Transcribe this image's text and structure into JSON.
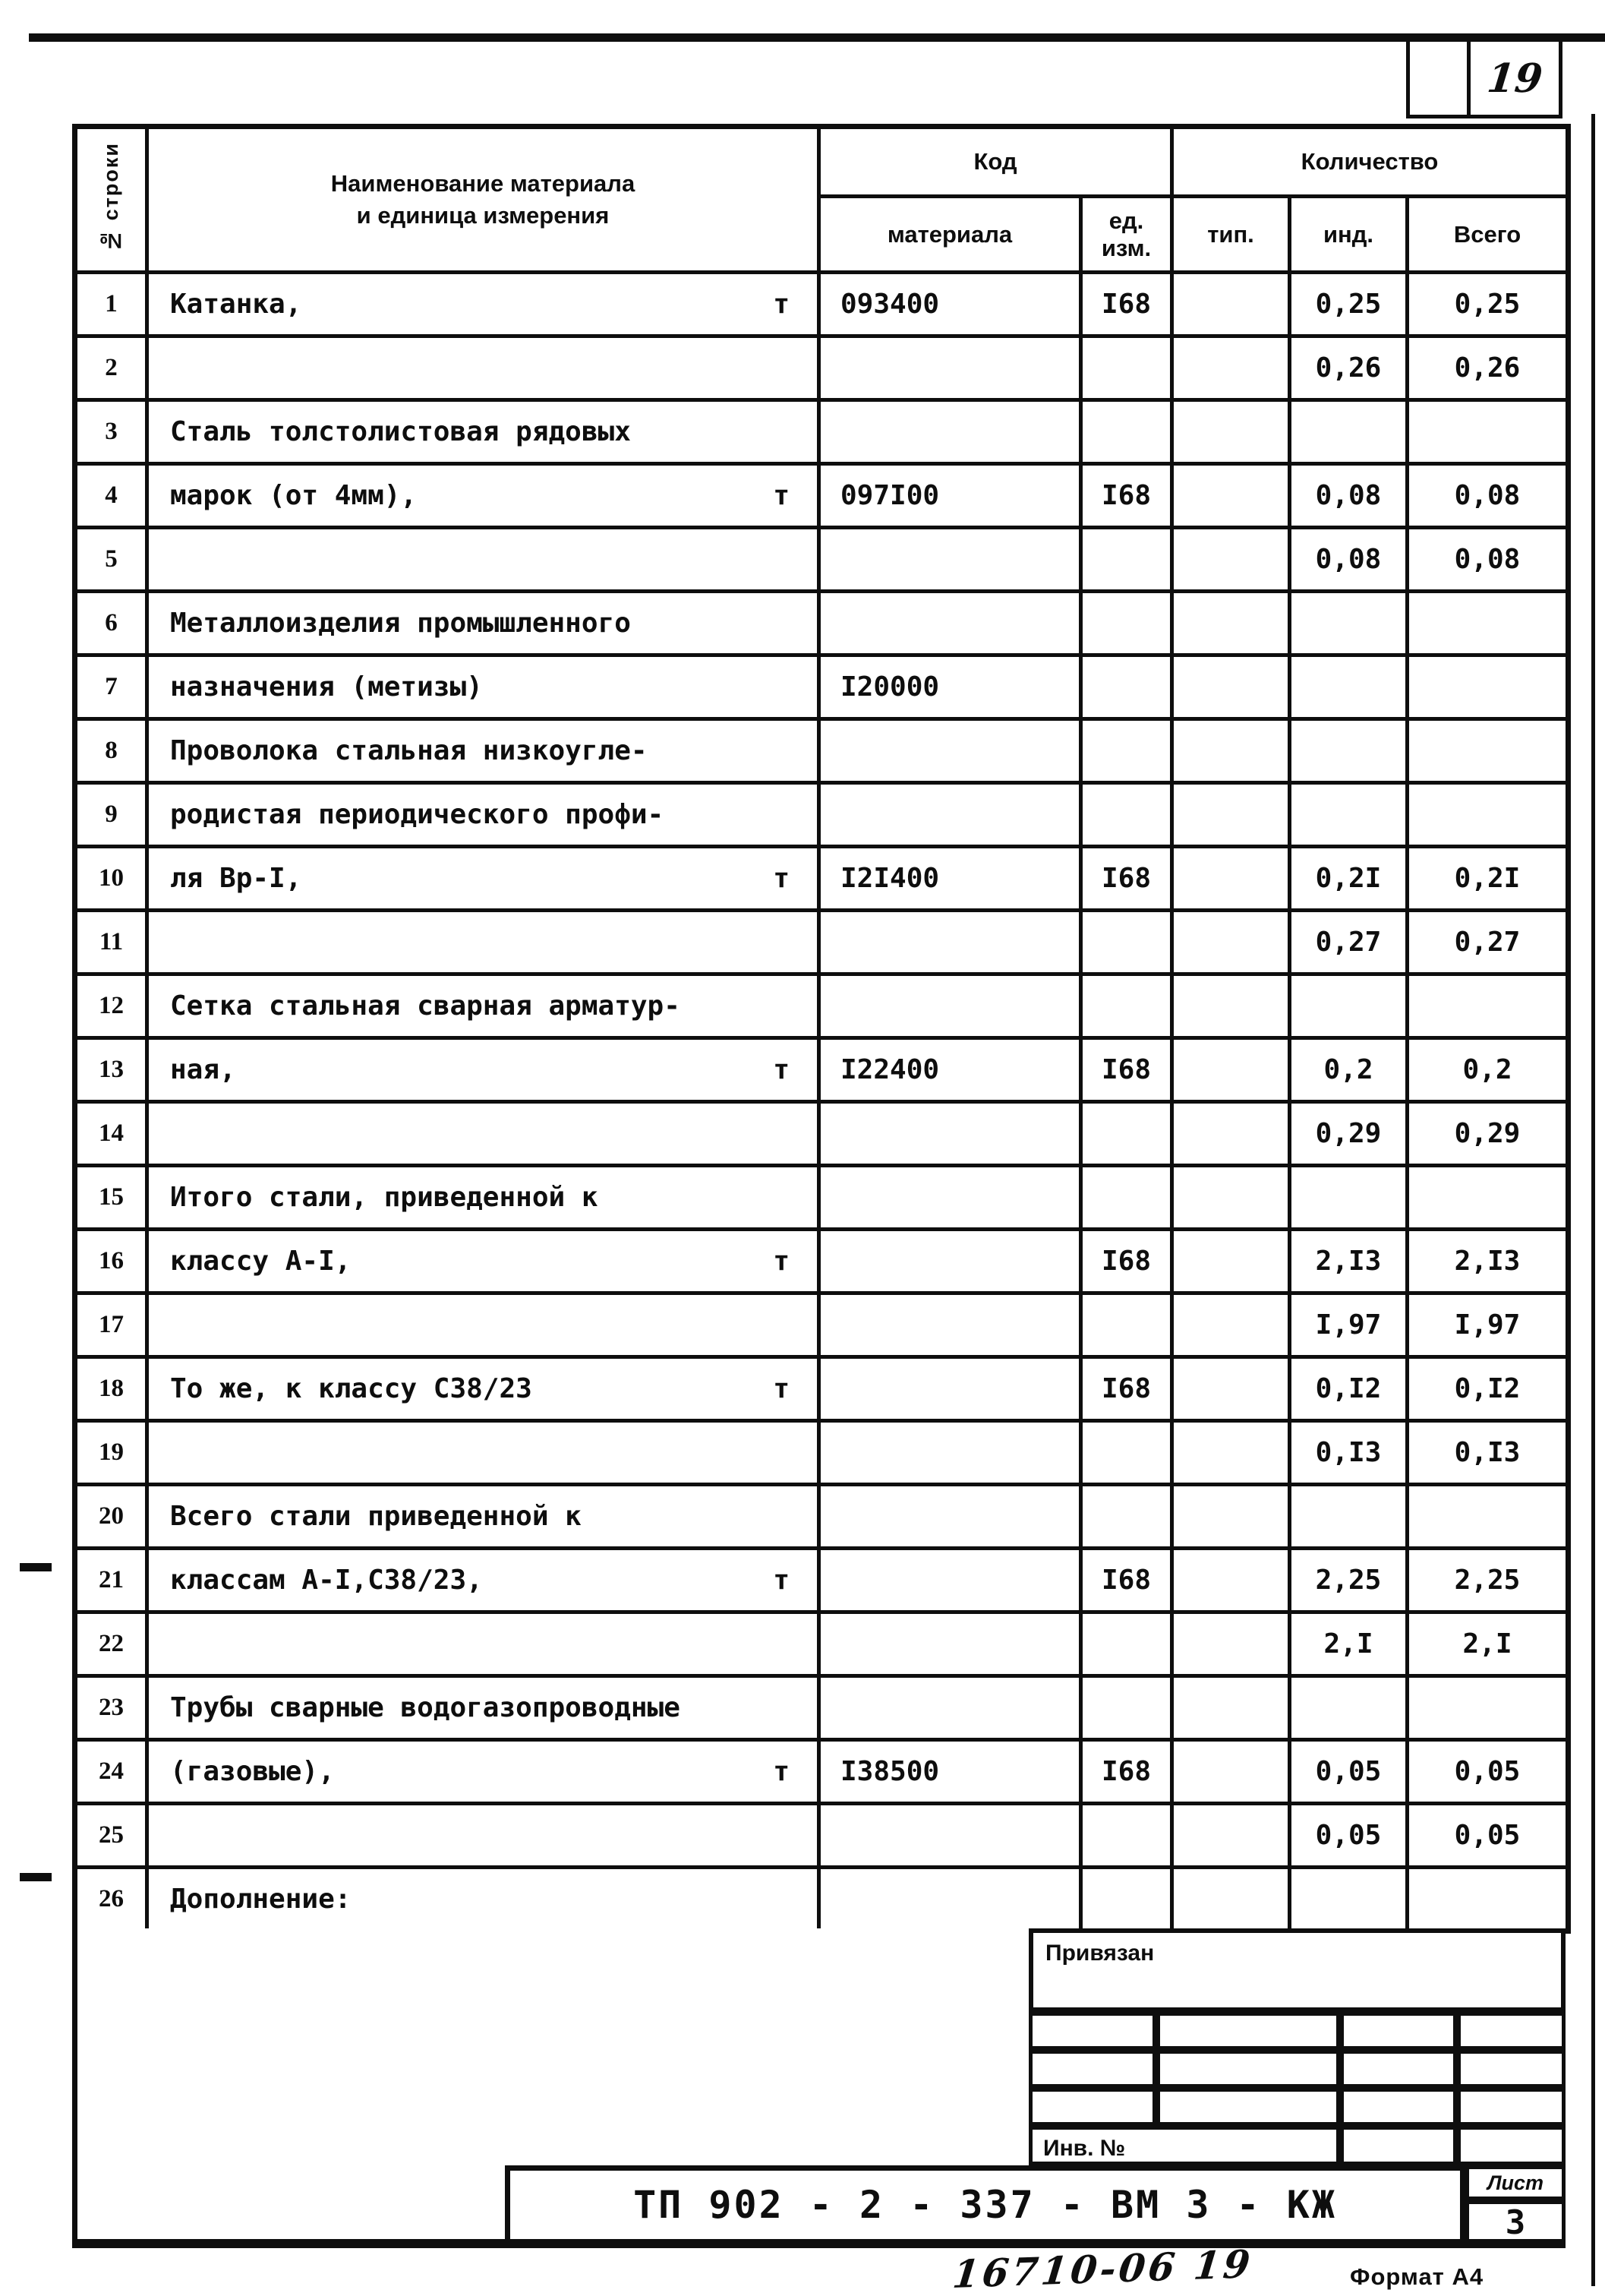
{
  "header_meta": {
    "page_number": "19"
  },
  "table": {
    "row_no_header": "№ строки",
    "name_header_line1": "Наименование материала",
    "name_header_line2": "и единица измерения",
    "code_group_header": "Код",
    "code_material_header": "материала",
    "code_unit_header_line1": "ед.",
    "code_unit_header_line2": "изм.",
    "qty_group_header": "Количество",
    "qty_type_header": "тип.",
    "qty_ind_header": "инд.",
    "qty_total_header": "Всего",
    "rows": [
      {
        "no": "1",
        "name": "Катанка,",
        "unit": "т",
        "code": "093400",
        "unit_code": "I68",
        "tip": "",
        "ind": "0,25",
        "total": "0,25"
      },
      {
        "no": "2",
        "name": "",
        "unit": "",
        "code": "",
        "unit_code": "",
        "tip": "",
        "ind": "0,26",
        "total": "0,26"
      },
      {
        "no": "3",
        "name": "Сталь толстолистовая рядовых",
        "unit": "",
        "code": "",
        "unit_code": "",
        "tip": "",
        "ind": "",
        "total": ""
      },
      {
        "no": "4",
        "name": "марок (от 4мм),",
        "unit": "т",
        "code": "097I00",
        "unit_code": "I68",
        "tip": "",
        "ind": "0,08",
        "total": "0,08"
      },
      {
        "no": "5",
        "name": "",
        "unit": "",
        "code": "",
        "unit_code": "",
        "tip": "",
        "ind": "0,08",
        "total": "0,08"
      },
      {
        "no": "6",
        "name": "Металлоизделия промышленного",
        "unit": "",
        "code": "",
        "unit_code": "",
        "tip": "",
        "ind": "",
        "total": ""
      },
      {
        "no": "7",
        "name": "назначения (метизы)",
        "unit": "",
        "code": "I20000",
        "unit_code": "",
        "tip": "",
        "ind": "",
        "total": ""
      },
      {
        "no": "8",
        "name": "Проволока стальная низкоугле-",
        "unit": "",
        "code": "",
        "unit_code": "",
        "tip": "",
        "ind": "",
        "total": ""
      },
      {
        "no": "9",
        "name": "родистая периодического профи-",
        "unit": "",
        "code": "",
        "unit_code": "",
        "tip": "",
        "ind": "",
        "total": ""
      },
      {
        "no": "10",
        "name": "ля Вр-I,",
        "unit": "т",
        "code": "I2I400",
        "unit_code": "I68",
        "tip": "",
        "ind": "0,2I",
        "total": "0,2I"
      },
      {
        "no": "11",
        "name": "",
        "unit": "",
        "code": "",
        "unit_code": "",
        "tip": "",
        "ind": "0,27",
        "total": "0,27"
      },
      {
        "no": "12",
        "name": "Сетка стальная сварная арматур-",
        "unit": "",
        "code": "",
        "unit_code": "",
        "tip": "",
        "ind": "",
        "total": ""
      },
      {
        "no": "13",
        "name": "ная,",
        "unit": "т",
        "code": "I22400",
        "unit_code": "I68",
        "tip": "",
        "ind": "0,2",
        "total": "0,2"
      },
      {
        "no": "14",
        "name": "",
        "unit": "",
        "code": "",
        "unit_code": "",
        "tip": "",
        "ind": "0,29",
        "total": "0,29"
      },
      {
        "no": "15",
        "name": "Итого стали, приведенной к",
        "unit": "",
        "code": "",
        "unit_code": "",
        "tip": "",
        "ind": "",
        "total": ""
      },
      {
        "no": "16",
        "name": "классу А-I,",
        "unit": "т",
        "code": "",
        "unit_code": "I68",
        "tip": "",
        "ind": "2,I3",
        "total": "2,I3"
      },
      {
        "no": "17",
        "name": "",
        "unit": "",
        "code": "",
        "unit_code": "",
        "tip": "",
        "ind": "I,97",
        "total": "I,97"
      },
      {
        "no": "18",
        "name": "То же, к классу С38/23",
        "unit": "т",
        "code": "",
        "unit_code": "I68",
        "tip": "",
        "ind": "0,I2",
        "total": "0,I2"
      },
      {
        "no": "19",
        "name": "",
        "unit": "",
        "code": "",
        "unit_code": "",
        "tip": "",
        "ind": "0,I3",
        "total": "0,I3"
      },
      {
        "no": "20",
        "name": "Всего стали приведенной к",
        "unit": "",
        "code": "",
        "unit_code": "",
        "tip": "",
        "ind": "",
        "total": ""
      },
      {
        "no": "21",
        "name": "классам А-I,С38/23,",
        "unit": "т",
        "code": "",
        "unit_code": "I68",
        "tip": "",
        "ind": "2,25",
        "total": "2,25"
      },
      {
        "no": "22",
        "name": "",
        "unit": "",
        "code": "",
        "unit_code": "",
        "tip": "",
        "ind": "2,I",
        "total": "2,I"
      },
      {
        "no": "23",
        "name": "Трубы сварные водогазопроводные",
        "unit": "",
        "code": "",
        "unit_code": "",
        "tip": "",
        "ind": "",
        "total": ""
      },
      {
        "no": "24",
        "name": "(газовые),",
        "unit": "т",
        "code": "I38500",
        "unit_code": "I68",
        "tip": "",
        "ind": "0,05",
        "total": "0,05"
      },
      {
        "no": "25",
        "name": "",
        "unit": "",
        "code": "",
        "unit_code": "",
        "tip": "",
        "ind": "0,05",
        "total": "0,05"
      },
      {
        "no": "26",
        "name": "Дополнение:",
        "unit": "",
        "code": "",
        "unit_code": "",
        "tip": "",
        "ind": "",
        "total": ""
      }
    ]
  },
  "bottom": {
    "attached_label": "Привязан",
    "inv_label": "Инв. №",
    "sheet_label": "Лист",
    "sheet_number": "3",
    "title_code": "ТП  902 - 2 - 337 - ВМ 3 - КЖ",
    "handwritten_note": "16710-06  19",
    "format_label": "Формат А4"
  }
}
